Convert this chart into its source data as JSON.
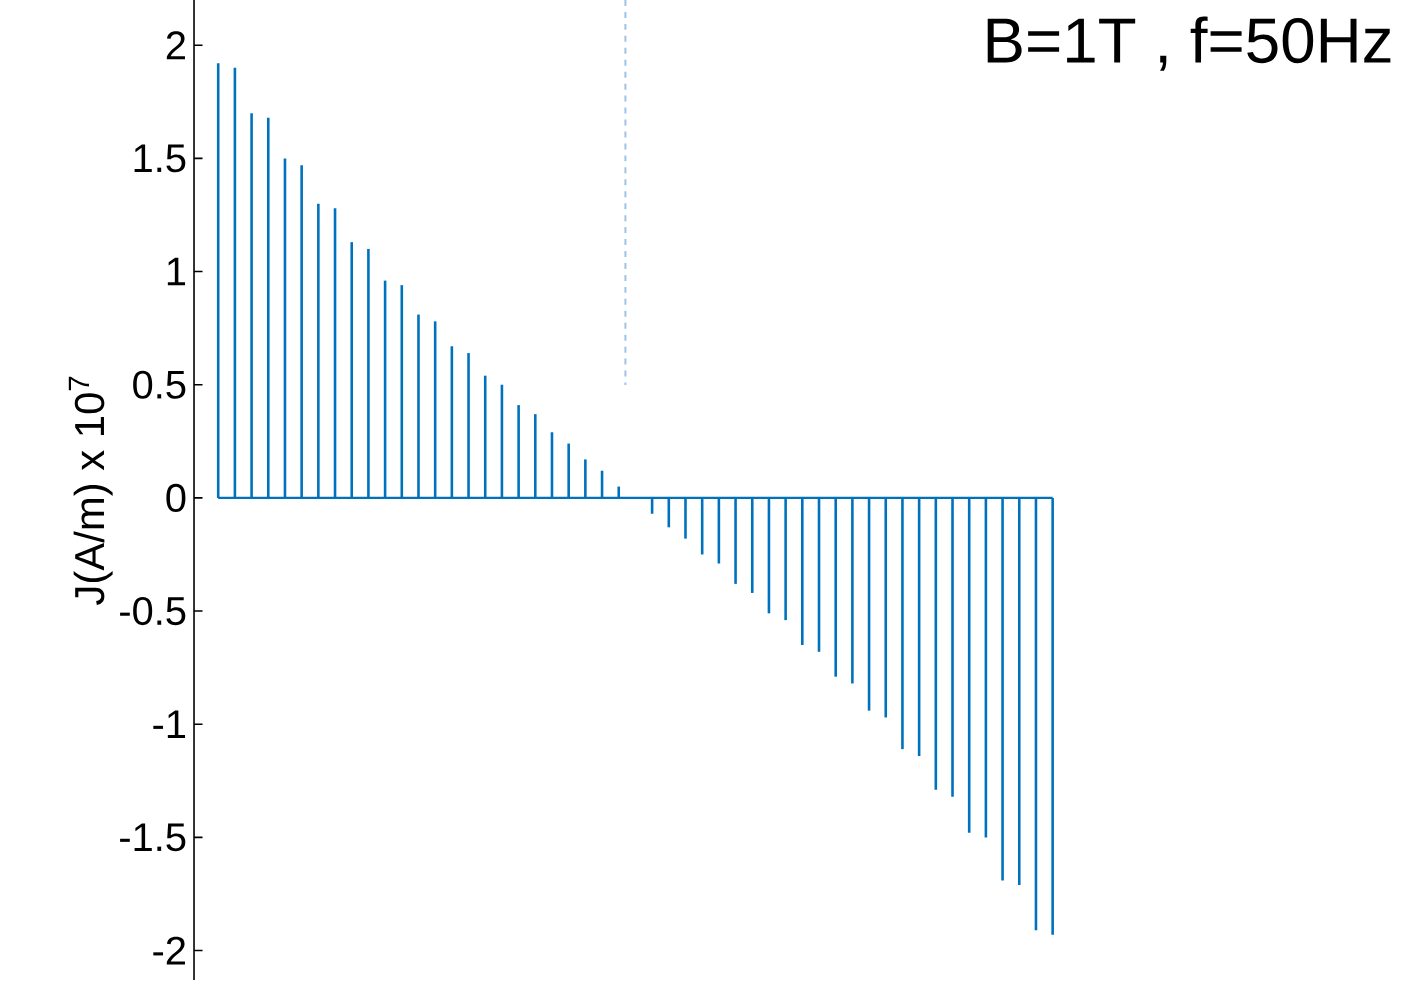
{
  "chart_data": {
    "type": "bar",
    "title": "B=1T ,  f=50Hz",
    "ylabel": "J(A/m) x 10$^{7}$",
    "categories": [
      null,
      null,
      null,
      null,
      null,
      null,
      null,
      null,
      null,
      null,
      null,
      null,
      null,
      null,
      null,
      null,
      null,
      null,
      null,
      null,
      null,
      null,
      null,
      null,
      null,
      null,
      null,
      null,
      null,
      null,
      null,
      null,
      null,
      null,
      null,
      null,
      null,
      null,
      null,
      null,
      null,
      null,
      null,
      null,
      null,
      null,
      null,
      null,
      null,
      null,
      null
    ],
    "ylim": [
      -2.13,
      2.2
    ],
    "yticks": [
      -2,
      -1.5,
      -1,
      -0.5,
      0,
      0.5,
      1,
      1.5,
      2
    ],
    "tick_labels": "y",
    "series": [
      {
        "color": "#0072bd",
        "values": [
          1.92,
          1.9,
          1.7,
          1.68,
          1.5,
          1.47,
          1.3,
          1.28,
          1.13,
          1.1,
          0.96,
          0.94,
          0.81,
          0.78,
          0.67,
          0.64,
          0.54,
          0.5,
          0.41,
          0.37,
          0.29,
          0.24,
          0.17,
          0.12,
          0.05,
          0,
          -0.07,
          -0.13,
          -0.18,
          -0.25,
          -0.29,
          -0.38,
          -0.42,
          -0.51,
          -0.54,
          -0.65,
          -0.68,
          -0.79,
          -0.82,
          -0.94,
          -0.97,
          -1.11,
          -1.14,
          -1.29,
          -1.32,
          -1.48,
          -1.5,
          -1.69,
          -1.71,
          -1.91,
          -1.93
        ]
      }
    ],
    "ref_lines": [
      {
        "axis": "y",
        "value": 0,
        "color": "#0072bd"
      }
    ]
  }
}
